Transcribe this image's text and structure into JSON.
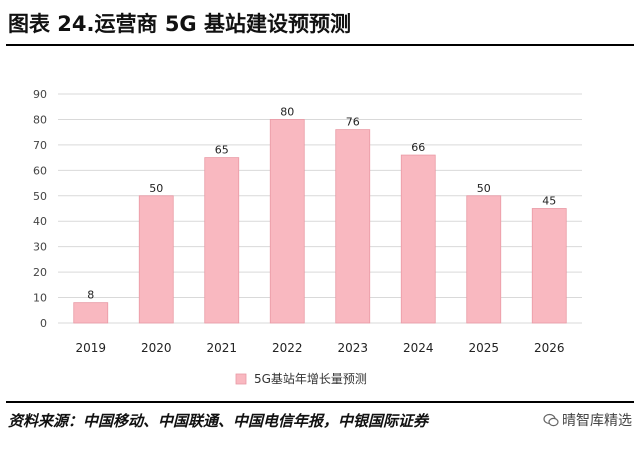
{
  "figure": {
    "title": "图表 24.运营商 5G 基站建设预预测",
    "source": "资料来源：中国移动、中国联通、中国电信年报，中银国际证券",
    "watermark": "晴智库精选"
  },
  "chart_data": {
    "type": "bar",
    "title": "",
    "categories": [
      "2019",
      "2020",
      "2021",
      "2022",
      "2023",
      "2024",
      "2025",
      "2026"
    ],
    "series": [
      {
        "name": "5G基站年增长量预测",
        "values": [
          8,
          50,
          65,
          80,
          76,
          66,
          50,
          45
        ],
        "color": "#f9b8c0",
        "edge": "#e99aa5"
      }
    ],
    "ylim": [
      0,
      90
    ],
    "yticks": [
      0,
      10,
      20,
      30,
      40,
      50,
      60,
      70,
      80,
      90
    ],
    "grid": true,
    "legend_position": "bottom-center",
    "xlabel": "",
    "ylabel": ""
  }
}
